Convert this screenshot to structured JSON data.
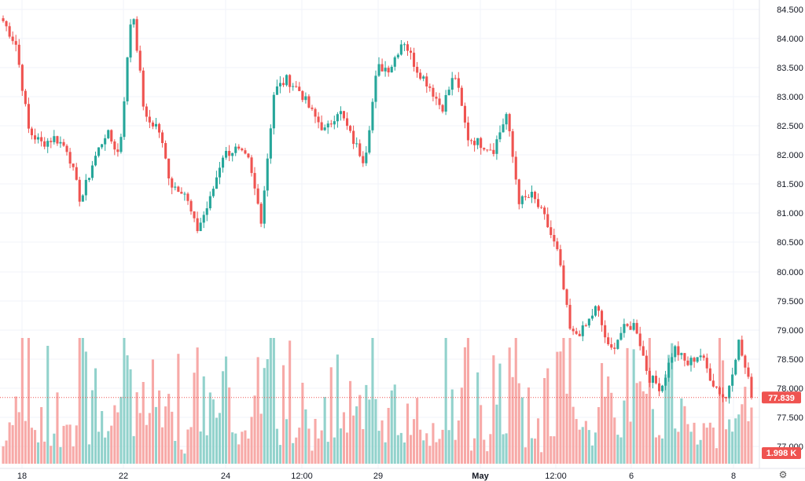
{
  "chart_data": {
    "type": "candlestick",
    "title": "",
    "y_axis": {
      "position": "right",
      "ticks": [
        "84.500",
        "84.000",
        "83.500",
        "83.000",
        "82.500",
        "82.000",
        "81.500",
        "81.000",
        "80.500",
        "80.000",
        "79.500",
        "79.000",
        "78.500",
        "78.000",
        "77.500",
        "77.000"
      ],
      "range": [
        76.9,
        84.65
      ]
    },
    "x_axis": {
      "ticks": [
        "18",
        "22",
        "24",
        "12:00",
        "29",
        "May",
        "12:00",
        "6",
        "8"
      ],
      "bold_ticks": [
        "May"
      ]
    },
    "grid": true,
    "series": [
      {
        "kind": "price",
        "anchor_closes": [
          84.3,
          83.9,
          82.4,
          82.2,
          82.3,
          82.1,
          81.2,
          81.9,
          82.4,
          82.0,
          84.6,
          82.6,
          82.5,
          81.5,
          81.4,
          80.7,
          81.2,
          82.0,
          82.1,
          81.9,
          80.9,
          83.1,
          83.3,
          83.1,
          82.7,
          82.4,
          82.8,
          82.3,
          81.9,
          83.5,
          83.5,
          84.0,
          83.5,
          83.2,
          82.8,
          83.4,
          82.3,
          82.2,
          82.1,
          82.7,
          81.2,
          81.3,
          80.9,
          80.3,
          78.9,
          79.0,
          79.4,
          78.6,
          79.0,
          79.1,
          78.2,
          78.0,
          78.7,
          78.4,
          78.6,
          78.1,
          77.8,
          78.8,
          77.9
        ]
      },
      {
        "kind": "volume",
        "max_value": 2.6
      }
    ],
    "last_price": "77.839",
    "last_volume": "1.998 K",
    "colors": {
      "up": "#26a69a",
      "down": "#ef5350",
      "volume_up": "#92d2cc",
      "volume_down": "#f7a9a7",
      "grid": "#f0f3fa",
      "price_line": "#ef5350"
    }
  },
  "ui": {
    "settings_icon": "gear-icon"
  }
}
